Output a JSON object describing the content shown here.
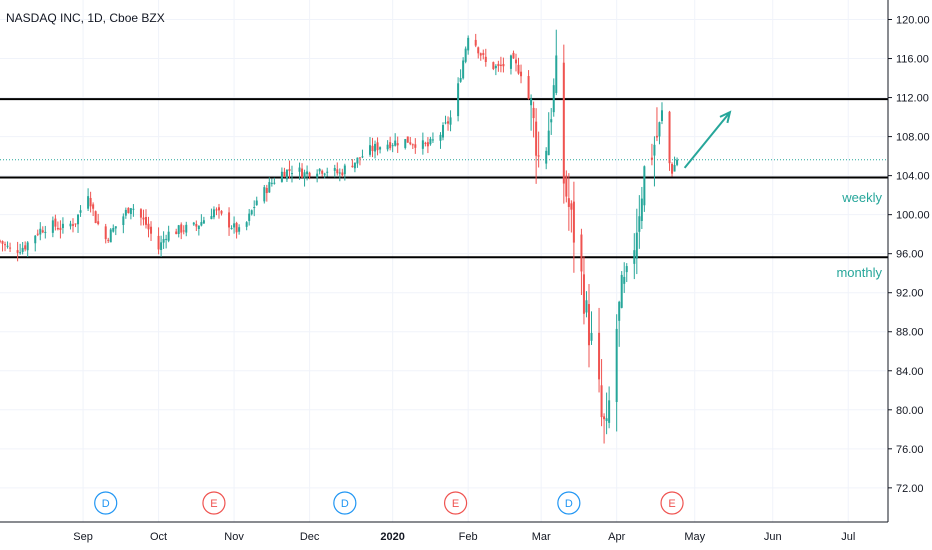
{
  "chart_data": {
    "type": "candlestick",
    "title": "NASDAQ INC, 1D, Cboe BZX",
    "ylim": [
      68.5,
      122
    ],
    "y_ticks": [
      "120.00",
      "116.00",
      "112.00",
      "108.00",
      "104.00",
      "100.00",
      "96.00",
      "92.00",
      "88.00",
      "84.00",
      "80.00",
      "76.00",
      "72.00"
    ],
    "y_tick_values": [
      120,
      116,
      112,
      108,
      104,
      100,
      96,
      92,
      88,
      84,
      80,
      76,
      72
    ],
    "x_labels": [
      "Sep",
      "Oct",
      "Nov",
      "Dec",
      "2020",
      "Feb",
      "Mar",
      "Apr",
      "May",
      "Jun",
      "Jul"
    ],
    "x_label_days": [
      33,
      63,
      93,
      123,
      156,
      186,
      215,
      245,
      276,
      307,
      337
    ],
    "x_range_days": [
      0,
      352
    ],
    "grid": true,
    "colors": {
      "up": "#26a69a",
      "down": "#ef5350",
      "grid": "#f0f3fa",
      "level": "#000000",
      "current": "#26a69a",
      "annot": "#26a69a",
      "dividend": "#2196f3",
      "earnings": "#ef5350"
    },
    "horizontal_levels": [
      {
        "label": "111.84",
        "value": 111.84
      },
      {
        "label": "103.81",
        "value": 103.81
      },
      {
        "label": "95.64",
        "value": 95.64
      }
    ],
    "current_price": {
      "label": "105.63",
      "value": 105.63
    },
    "annotations": [
      {
        "text": "weekly",
        "value": 101.7
      },
      {
        "text": "monthly",
        "value": 94.0
      }
    ],
    "arrow": {
      "from": {
        "day": 272,
        "value": 104.8
      },
      "to": {
        "day": 290,
        "value": 110.5
      }
    },
    "events": [
      {
        "letter": "D",
        "day": 42,
        "kind": "dividend"
      },
      {
        "letter": "E",
        "day": 85,
        "kind": "earnings"
      },
      {
        "letter": "D",
        "day": 137,
        "kind": "dividend"
      },
      {
        "letter": "E",
        "day": 181,
        "kind": "earnings"
      },
      {
        "letter": "D",
        "day": 226,
        "kind": "dividend"
      },
      {
        "letter": "E",
        "day": 267,
        "kind": "earnings"
      }
    ],
    "anchors": [
      [
        0,
        97.3
      ],
      [
        5,
        96.2
      ],
      [
        10,
        96.8
      ],
      [
        15,
        98.3
      ],
      [
        20,
        99.0
      ],
      [
        25,
        98.6
      ],
      [
        30,
        99.3
      ],
      [
        35,
        102.3
      ],
      [
        38,
        99.5
      ],
      [
        42,
        97.5
      ],
      [
        48,
        99.5
      ],
      [
        52,
        101.0
      ],
      [
        58,
        99.0
      ],
      [
        63,
        96.5
      ],
      [
        66,
        98.0
      ],
      [
        72,
        98.5
      ],
      [
        78,
        98.8
      ],
      [
        85,
        100.5
      ],
      [
        90,
        99.3
      ],
      [
        96,
        98.0
      ],
      [
        102,
        101.5
      ],
      [
        108,
        103.3
      ],
      [
        112,
        104.3
      ],
      [
        117,
        104.7
      ],
      [
        121,
        104.2
      ],
      [
        125,
        104.7
      ],
      [
        130,
        104.6
      ],
      [
        135,
        104.2
      ],
      [
        138,
        105.0
      ],
      [
        142,
        105.6
      ],
      [
        146,
        106.5
      ],
      [
        152,
        107.2
      ],
      [
        158,
        107.5
      ],
      [
        162,
        107.6
      ],
      [
        167,
        107.2
      ],
      [
        170,
        107.0
      ],
      [
        175,
        108.3
      ],
      [
        180,
        110.3
      ],
      [
        183,
        114.5
      ],
      [
        186,
        118.5
      ],
      [
        189,
        117.5
      ],
      [
        193,
        115.5
      ],
      [
        198,
        115.0
      ],
      [
        203,
        115.8
      ],
      [
        207,
        114.6
      ],
      [
        211,
        111.0
      ],
      [
        213,
        107.5
      ],
      [
        215,
        104.0
      ],
      [
        218,
        109.0
      ],
      [
        221,
        114.5
      ],
      [
        224,
        103.5
      ],
      [
        228,
        98.0
      ],
      [
        231,
        93.5
      ],
      [
        234,
        88.0
      ],
      [
        237,
        84.5
      ],
      [
        239,
        79.0
      ],
      [
        241,
        77.5
      ],
      [
        244,
        86.5
      ],
      [
        247,
        92.0
      ],
      [
        250,
        93.5
      ],
      [
        253,
        99.0
      ],
      [
        256,
        104.5
      ],
      [
        259,
        106.5
      ],
      [
        261,
        108.0
      ],
      [
        263,
        110.5
      ],
      [
        265,
        106.0
      ],
      [
        267,
        104.5
      ],
      [
        269,
        105.63
      ]
    ]
  }
}
